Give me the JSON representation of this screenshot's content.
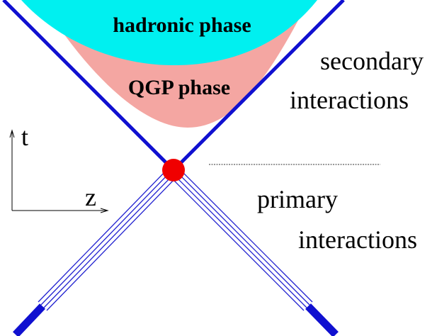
{
  "regions": {
    "hadronic": "hadronic phase",
    "qgp": "QGP phase"
  },
  "labels": {
    "secondary": "secondary",
    "secondary_interactions": "interactions",
    "primary": "primary",
    "primary_interactions": "interactions"
  },
  "axes": {
    "t": "t",
    "z": "z"
  }
}
